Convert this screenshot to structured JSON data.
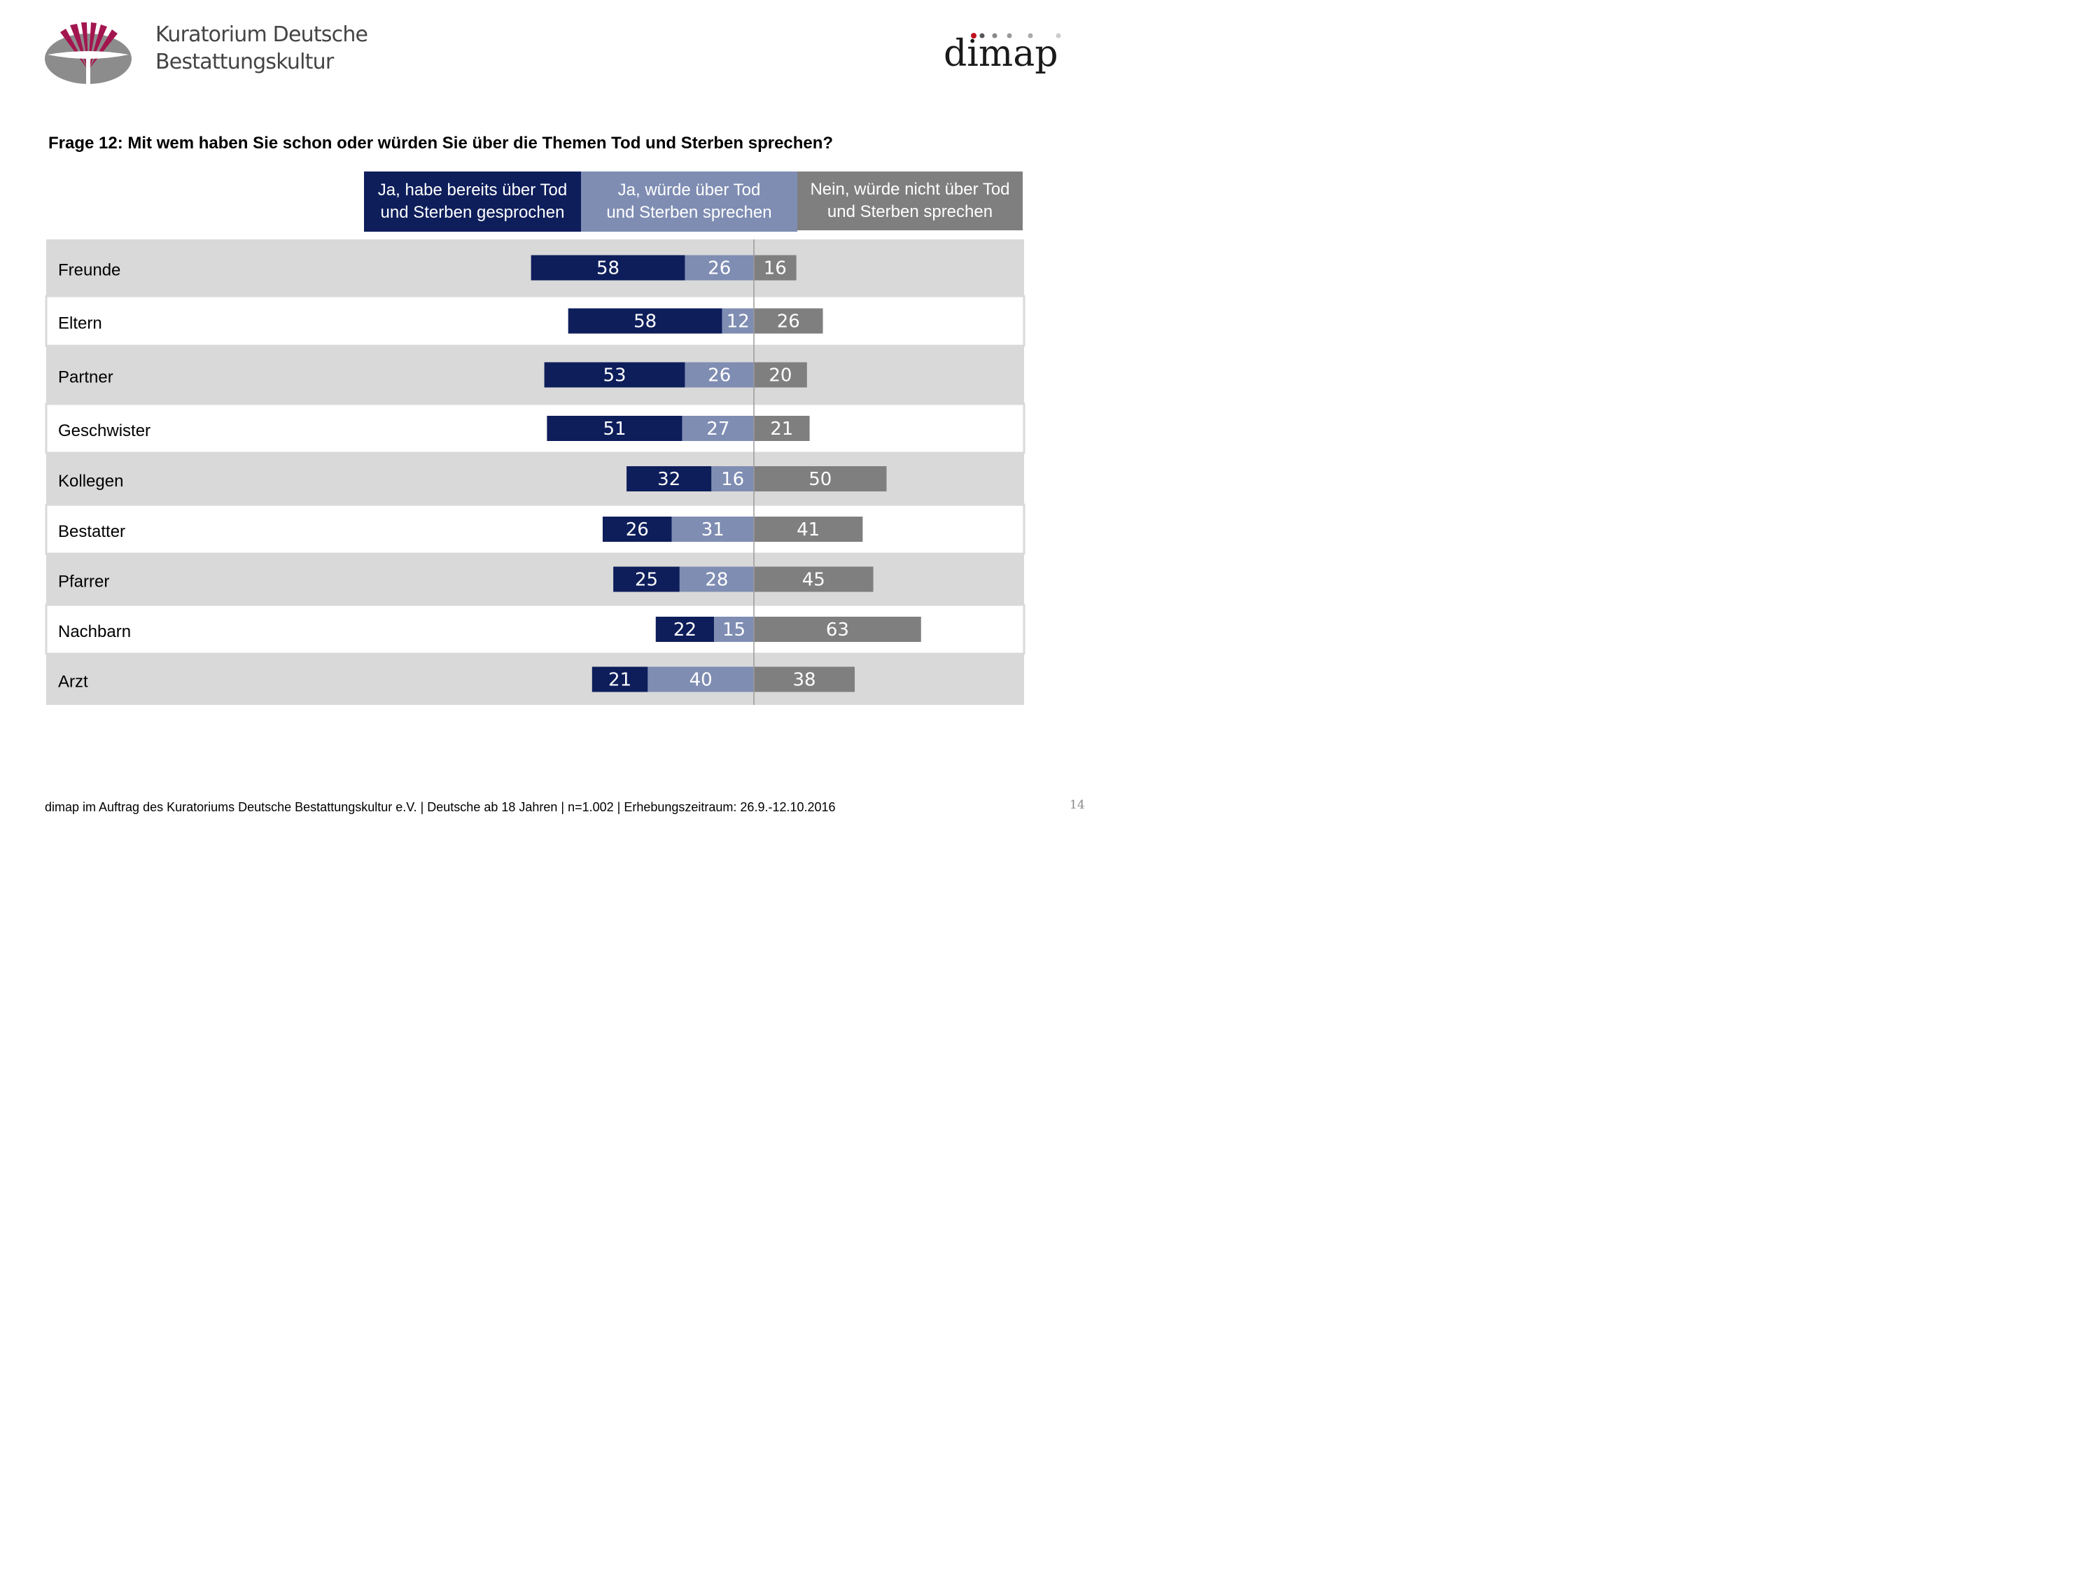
{
  "header": {
    "org_name_line1": "Kuratorium Deutsche",
    "org_name_line2": "Bestattungskultur",
    "dimap_logo_text": "dimap"
  },
  "question": "Frage 12: Mit wem haben Sie schon oder würden Sie über die Themen Tod und Sterben sprechen?",
  "legend": [
    {
      "line1": "Ja, habe bereits über Tod",
      "line2": "und Sterben gesprochen"
    },
    {
      "line1": "Ja, würde über Tod",
      "line2": "und Sterben sprechen"
    },
    {
      "line1": "Nein, würde nicht über Tod",
      "line2": "und Sterben sprechen"
    }
  ],
  "colors": {
    "ja_bereits": "#0e1e5b",
    "ja_wuerde": "#7f8db3",
    "nein": "#7f7f7f",
    "row_shade": "#d9d9d9",
    "row_white": "#ffffff"
  },
  "chart_data": {
    "type": "bar",
    "orientation": "horizontal-diverging-stacked",
    "title": "Frage 12: Mit wem haben Sie schon oder würden Sie über die Themen Tod und Sterben sprechen?",
    "categories": [
      "Freunde",
      "Eltern",
      "Partner",
      "Geschwister",
      "Kollegen",
      "Bestatter",
      "Pfarrer",
      "Nachbarn",
      "Arzt"
    ],
    "series": [
      {
        "name": "Ja, habe bereits über Tod und Sterben gesprochen",
        "values": [
          58,
          58,
          53,
          51,
          32,
          26,
          25,
          22,
          21
        ]
      },
      {
        "name": "Ja, würde über Tod und Sterben sprechen",
        "values": [
          26,
          12,
          26,
          27,
          16,
          31,
          28,
          15,
          40
        ]
      },
      {
        "name": "Nein, würde nicht über Tod und Sterben sprechen",
        "values": [
          16,
          26,
          20,
          21,
          50,
          41,
          45,
          63,
          38
        ]
      }
    ],
    "unit": "%",
    "xlim": [
      -100,
      100
    ]
  },
  "footer": "dimap im Auftrag des Kuratoriums Deutsche Bestattungskultur e.V. | Deutsche  ab 18 Jahren | n=1.002 | Erhebungszeitraum: 26.9.-12.10.2016",
  "page_number": "14"
}
